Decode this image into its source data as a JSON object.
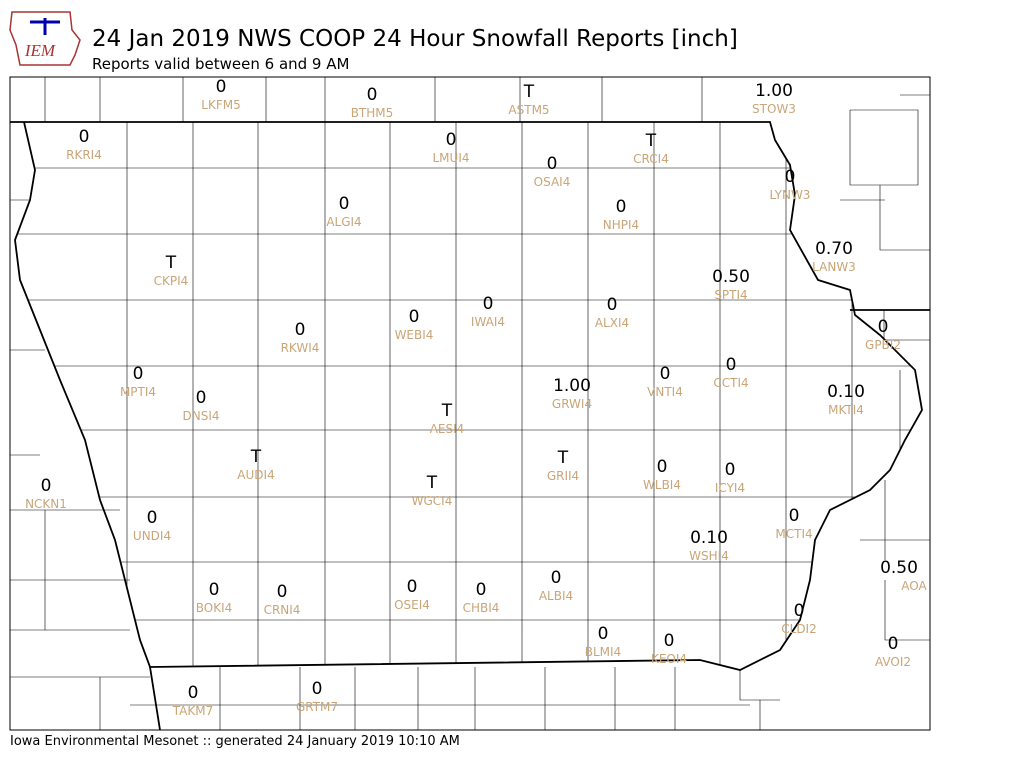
{
  "header": {
    "logo": "IEM",
    "title": "24 Jan 2019 NWS COOP 24 Hour Snowfall Reports [inch]",
    "subtitle": "Reports valid between 6 and 9 AM"
  },
  "stations": [
    {
      "value": "0",
      "id": "LKFM5"
    },
    {
      "value": "0",
      "id": "BTHM5"
    },
    {
      "value": "T",
      "id": "ASTM5"
    },
    {
      "value": "1.00",
      "id": "STOW3"
    },
    {
      "value": "0",
      "id": "RKRI4"
    },
    {
      "value": "0",
      "id": "LMUI4"
    },
    {
      "value": "T",
      "id": "CRCI4"
    },
    {
      "value": "0",
      "id": "OSAI4"
    },
    {
      "value": "0",
      "id": "LYNW3"
    },
    {
      "value": "0",
      "id": "ALGI4"
    },
    {
      "value": "0",
      "id": "NHPI4"
    },
    {
      "value": "0.70",
      "id": "LANW3"
    },
    {
      "value": "T",
      "id": "CKPI4"
    },
    {
      "value": "0.50",
      "id": "SPTI4"
    },
    {
      "value": "0",
      "id": "IWAI4"
    },
    {
      "value": "0",
      "id": "ALXI4"
    },
    {
      "value": "0",
      "id": "WEBI4"
    },
    {
      "value": "0",
      "id": "RKWI4"
    },
    {
      "value": "0",
      "id": "GPBI2"
    },
    {
      "value": "0",
      "id": "MPTI4"
    },
    {
      "value": "0",
      "id": "VNTI4"
    },
    {
      "value": "0",
      "id": "CCTI4"
    },
    {
      "value": "1.00",
      "id": "GRWI4"
    },
    {
      "value": "0.10",
      "id": "MKTI4"
    },
    {
      "value": "0",
      "id": "DNSI4"
    },
    {
      "value": "T",
      "id": "AESI4"
    },
    {
      "value": "T",
      "id": "AUDI4"
    },
    {
      "value": "T",
      "id": "GRII4"
    },
    {
      "value": "0",
      "id": "WLBI4"
    },
    {
      "value": "0",
      "id": "ICYI4"
    },
    {
      "value": "T",
      "id": "WGCI4"
    },
    {
      "value": "0",
      "id": "NCKN1"
    },
    {
      "value": "0",
      "id": "UNDI4"
    },
    {
      "value": "0",
      "id": "MCTI4"
    },
    {
      "value": "0.10",
      "id": "WSHI4"
    },
    {
      "value": "0.50",
      "id": "AOA"
    },
    {
      "value": "0",
      "id": "ALBI4"
    },
    {
      "value": "0",
      "id": "OSEI4"
    },
    {
      "value": "0",
      "id": "BOKI4"
    },
    {
      "value": "0",
      "id": "CRNI4"
    },
    {
      "value": "0",
      "id": "CHBI4"
    },
    {
      "value": "0",
      "id": "CLDI2"
    },
    {
      "value": "0",
      "id": "BLMI4"
    },
    {
      "value": "0",
      "id": "KEOI4"
    },
    {
      "value": "0",
      "id": "AVOI2"
    },
    {
      "value": "0",
      "id": "TAKM7"
    },
    {
      "value": "0",
      "id": "GRTM7"
    }
  ],
  "footer": "Iowa Environmental Mesonet :: generated 24 January 2019 10:10 AM"
}
